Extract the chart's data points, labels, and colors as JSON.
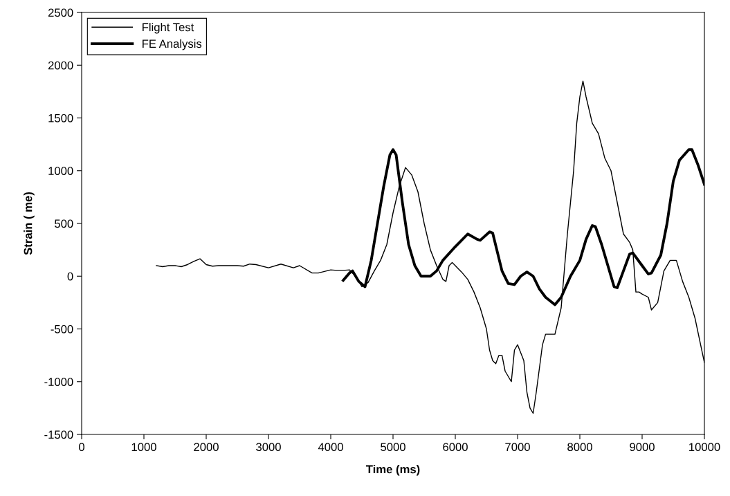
{
  "chart_data": {
    "type": "line",
    "xlabel": "Time (ms)",
    "ylabel": "Strain ( me)",
    "xlim": [
      0,
      10000
    ],
    "xticks": [
      0,
      1000,
      2000,
      3000,
      4000,
      5000,
      6000,
      7000,
      8000,
      9000,
      10000
    ],
    "ylim": [
      -1500,
      2500
    ],
    "yticks": [
      -1500,
      -1000,
      -500,
      0,
      500,
      1000,
      1500,
      2000,
      2500
    ],
    "grid": false,
    "legend": "top left",
    "marker": "none",
    "line_style": "solid",
    "series": [
      {
        "name": "Flight Test",
        "color": "#000000",
        "x": [
          1200,
          1300,
          1400,
          1500,
          1600,
          1700,
          1800,
          1900,
          2000,
          2100,
          2200,
          2400,
          2500,
          2600,
          2700,
          2800,
          3000,
          3200,
          3400,
          3500,
          3700,
          3800,
          3900,
          4000,
          4100,
          4200,
          4300,
          4400,
          4500,
          4600,
          4700,
          4800,
          4900,
          5000,
          5100,
          5200,
          5300,
          5400,
          5500,
          5600,
          5700,
          5800,
          5850,
          5900,
          5950,
          6000,
          6100,
          6200,
          6300,
          6400,
          6500,
          6550,
          6600,
          6650,
          6700,
          6750,
          6800,
          6900,
          6950,
          7000,
          7100,
          7150,
          7200,
          7250,
          7300,
          7400,
          7450,
          7600,
          7700,
          7800,
          7900,
          7950,
          8000,
          8050,
          8100,
          8200,
          8300,
          8400,
          8500,
          8600,
          8700,
          8800,
          8850,
          8900,
          8950,
          9000,
          9100,
          9150,
          9250,
          9350,
          9450,
          9550,
          9650,
          9750,
          9850,
          10000
        ],
        "values": [
          100,
          90,
          100,
          100,
          90,
          110,
          140,
          165,
          110,
          95,
          100,
          100,
          100,
          95,
          115,
          110,
          80,
          115,
          80,
          100,
          30,
          30,
          45,
          60,
          55,
          55,
          60,
          0,
          -100,
          -60,
          50,
          150,
          300,
          600,
          850,
          1030,
          960,
          800,
          500,
          250,
          100,
          -30,
          -50,
          100,
          130,
          100,
          40,
          -30,
          -150,
          -300,
          -500,
          -700,
          -800,
          -830,
          -750,
          -750,
          -900,
          -1000,
          -700,
          -650,
          -800,
          -1100,
          -1250,
          -1300,
          -1100,
          -650,
          -550,
          -550,
          -300,
          400,
          1000,
          1450,
          1700,
          1850,
          1700,
          1450,
          1350,
          1120,
          1000,
          700,
          400,
          320,
          250,
          -150,
          -150,
          -170,
          -200,
          -320,
          -250,
          50,
          150,
          150,
          -50,
          -200,
          -400,
          -820
        ]
      },
      {
        "name": "FE Analysis",
        "color": "#000000",
        "x": [
          4200,
          4300,
          4350,
          4450,
          4550,
          4650,
          4750,
          4850,
          4950,
          5000,
          5050,
          5150,
          5250,
          5350,
          5450,
          5600,
          5700,
          5800,
          6000,
          6200,
          6350,
          6400,
          6550,
          6600,
          6750,
          6850,
          6950,
          7050,
          7150,
          7250,
          7350,
          7450,
          7600,
          7700,
          7850,
          8000,
          8100,
          8200,
          8250,
          8350,
          8450,
          8550,
          8600,
          8700,
          8800,
          8850,
          9000,
          9100,
          9150,
          9300,
          9400,
          9500,
          9600,
          9750,
          9800,
          9900,
          10000
        ],
        "values": [
          -40,
          30,
          50,
          -50,
          -100,
          150,
          500,
          850,
          1150,
          1200,
          1150,
          700,
          300,
          100,
          0,
          0,
          50,
          150,
          280,
          400,
          350,
          340,
          420,
          410,
          50,
          -70,
          -80,
          0,
          40,
          0,
          -120,
          -200,
          -270,
          -200,
          0,
          150,
          350,
          480,
          470,
          300,
          100,
          -100,
          -110,
          50,
          210,
          220,
          100,
          20,
          30,
          200,
          500,
          900,
          1100,
          1200,
          1200,
          1050,
          870
        ]
      }
    ]
  }
}
